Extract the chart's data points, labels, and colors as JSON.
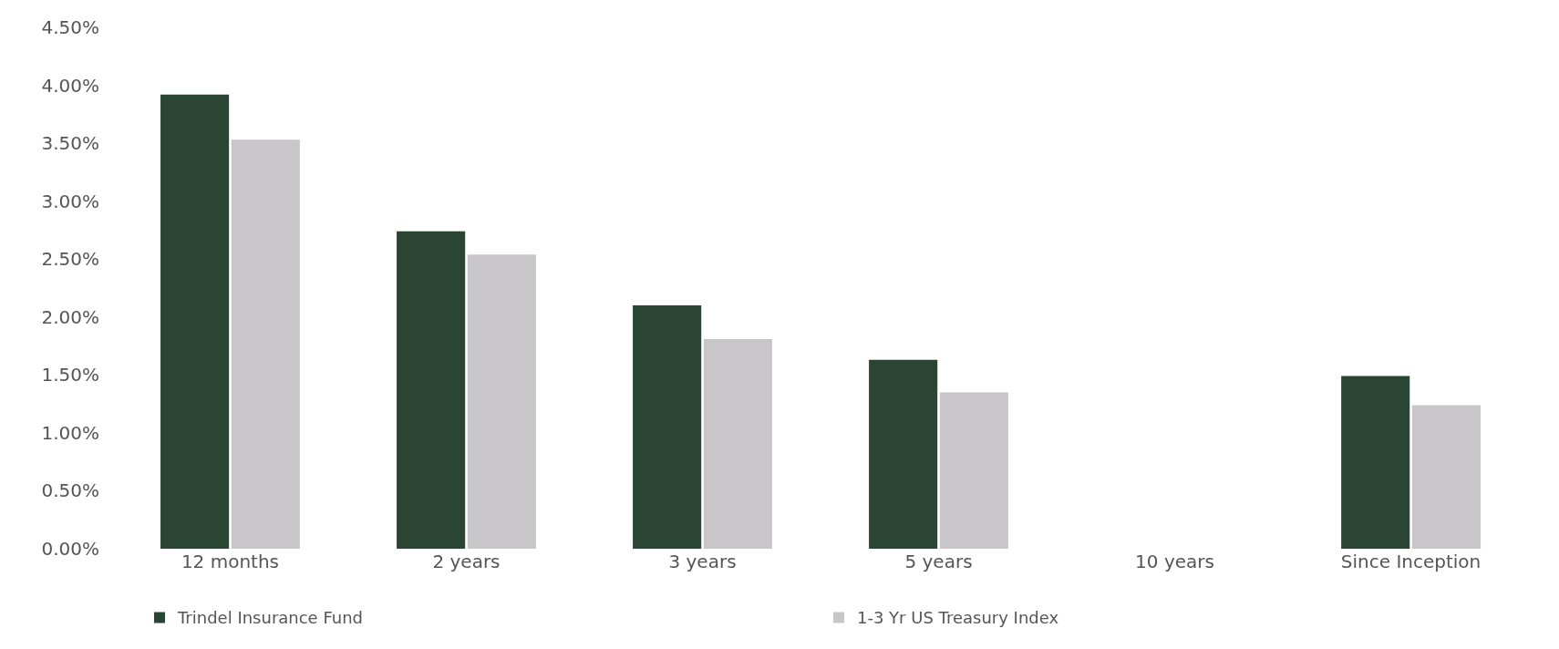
{
  "chart_data": {
    "type": "bar",
    "categories": [
      "12 months",
      "2 years",
      "3 years",
      "5 years",
      "10 years",
      "Since Inception"
    ],
    "series": [
      {
        "name": "Trindel Insurance Fund",
        "color": "#2b4535",
        "values": [
          3.92,
          2.74,
          2.1,
          1.63,
          null,
          1.49
        ]
      },
      {
        "name": "1-3 Yr US Treasury Index",
        "color": "#c9c6ca",
        "values": [
          3.53,
          2.54,
          1.81,
          1.35,
          null,
          1.24
        ]
      }
    ],
    "ylim": [
      0,
      4.5
    ],
    "yticks": [
      {
        "value": 0,
        "label": "0.00%"
      },
      {
        "value": 0.5,
        "label": "0.50%"
      },
      {
        "value": 1,
        "label": "1.00%"
      },
      {
        "value": 1.5,
        "label": "1.50%"
      },
      {
        "value": 2,
        "label": "2.00%"
      },
      {
        "value": 2.5,
        "label": "2.50%"
      },
      {
        "value": 3,
        "label": "3.00%"
      },
      {
        "value": 3.5,
        "label": "3.50%"
      },
      {
        "value": 4,
        "label": "4.00%"
      },
      {
        "value": 4.5,
        "label": "4.50%"
      }
    ],
    "legend": "bottom"
  }
}
